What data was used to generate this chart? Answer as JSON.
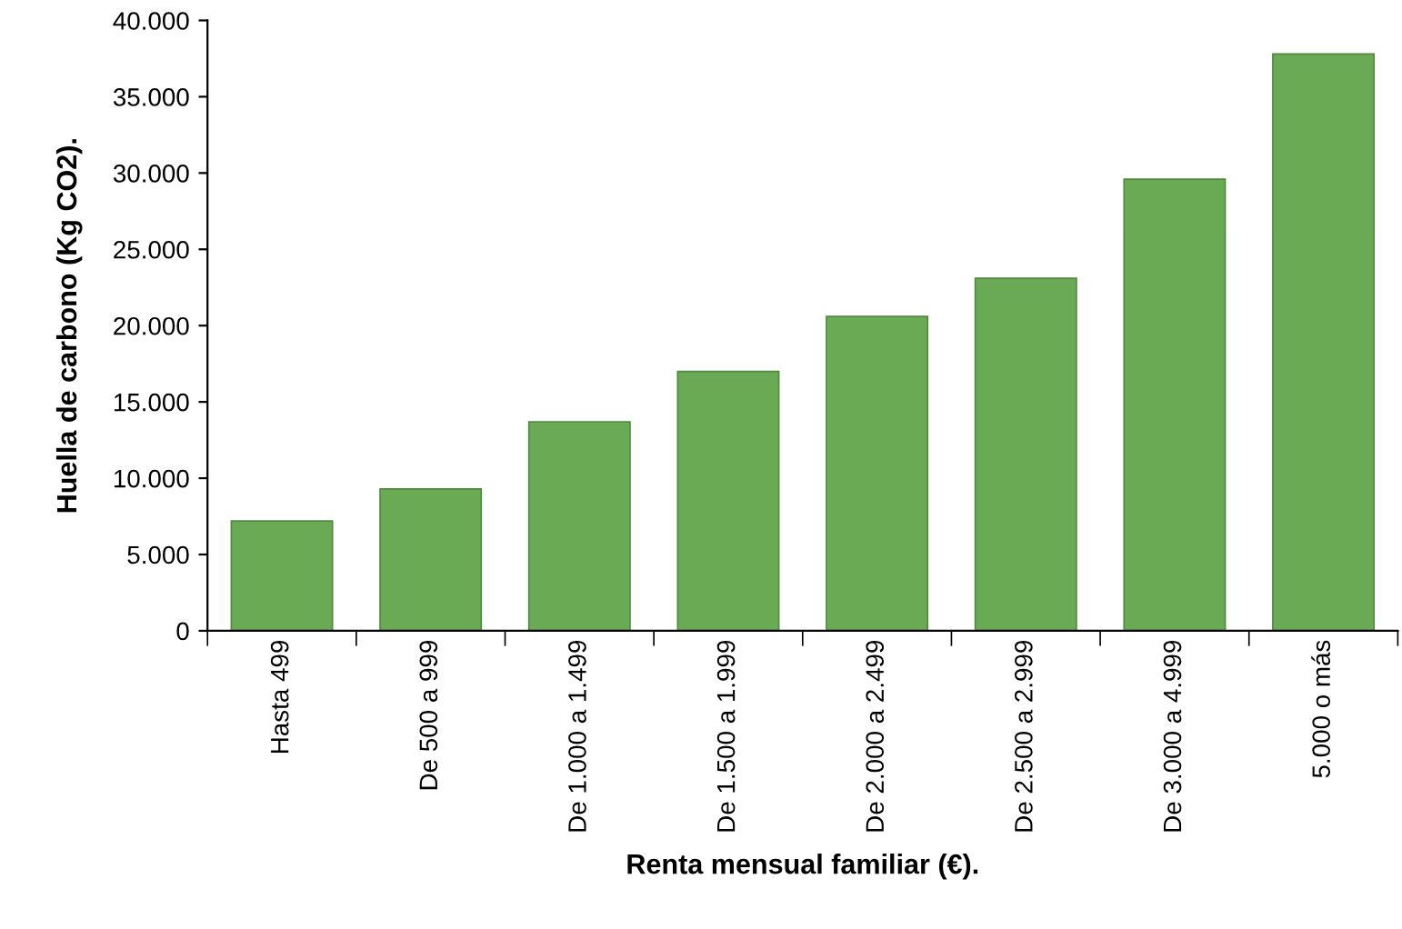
{
  "chart_data": {
    "type": "bar",
    "xlabel": "Renta mensual familiar (€).",
    "ylabel": "Huella de carbono (Kg CO2).",
    "categories": [
      "Hasta 499",
      "De 500 a 999",
      "De 1.000 a 1.499",
      "De 1.500 a 1.999",
      "De 2.000 a 2.499",
      "De 2.500 a 2.999",
      "De 3.000 a 4.999",
      "5.000 o más"
    ],
    "values": [
      7200,
      9300,
      13700,
      17000,
      20600,
      23100,
      29600,
      37800
    ],
    "color": "#6aaa55",
    "ylim": [
      0,
      40000
    ],
    "yticks": [
      0,
      {
        "value": 5000,
        "label": "5.000"
      },
      {
        "value": 10000,
        "label": "10.000"
      },
      {
        "value": 15000,
        "label": "15.000"
      },
      {
        "value": 20000,
        "label": "20.000"
      },
      {
        "value": 25000,
        "label": "25.000"
      },
      {
        "value": 30000,
        "label": "30.000"
      },
      {
        "value": 35000,
        "label": "35.000"
      },
      {
        "value": 40000,
        "label": "40.000"
      }
    ],
    "grid": false
  }
}
